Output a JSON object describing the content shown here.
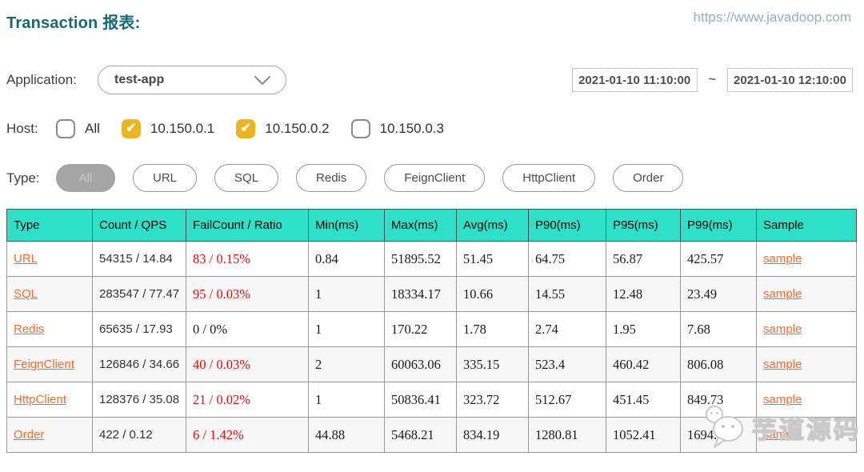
{
  "header": {
    "title": "Transaction 报表:",
    "site_url": "https://www.javadoop.com"
  },
  "filters": {
    "application": {
      "label": "Application:",
      "selected": "test-app"
    },
    "date_range": {
      "start": "2021-01-10 11:10:00",
      "separator": "~",
      "end": "2021-01-10 12:10:00"
    },
    "host": {
      "label": "Host:",
      "options": [
        {
          "label": "All",
          "checked": false
        },
        {
          "label": "10.150.0.1",
          "checked": true
        },
        {
          "label": "10.150.0.2",
          "checked": true
        },
        {
          "label": "10.150.0.3",
          "checked": false
        }
      ]
    },
    "type": {
      "label": "Type:",
      "options": [
        {
          "label": "All",
          "selected": true
        },
        {
          "label": "URL",
          "selected": false
        },
        {
          "label": "SQL",
          "selected": false
        },
        {
          "label": "Redis",
          "selected": false
        },
        {
          "label": "FeignClient",
          "selected": false
        },
        {
          "label": "HttpClient",
          "selected": false
        },
        {
          "label": "Order",
          "selected": false
        }
      ]
    }
  },
  "table": {
    "columns": [
      "Type",
      "Count / QPS",
      "FailCount / Ratio",
      "Min(ms)",
      "Max(ms)",
      "Avg(ms)",
      "P90(ms)",
      "P95(ms)",
      "P99(ms)",
      "Sample"
    ],
    "rows": [
      {
        "type": "URL",
        "count_qps": "54315 / 14.84",
        "fail": "83 / 0.15%",
        "fail_red": true,
        "min": "0.84",
        "max": "51895.52",
        "avg": "51.45",
        "p90": "64.75",
        "p95": "56.87",
        "p99": "425.57",
        "sample": "sample"
      },
      {
        "type": "SQL",
        "count_qps": "283547 / 77.47",
        "fail": "95 / 0.03%",
        "fail_red": true,
        "min": "1",
        "max": "18334.17",
        "avg": "10.66",
        "p90": "14.55",
        "p95": "12.48",
        "p99": "23.49",
        "sample": "sample"
      },
      {
        "type": "Redis",
        "count_qps": "65635 / 17.93",
        "fail": "0 / 0%",
        "fail_red": false,
        "min": "1",
        "max": "170.22",
        "avg": "1.78",
        "p90": "2.74",
        "p95": "1.95",
        "p99": "7.68",
        "sample": "sample"
      },
      {
        "type": "FeignClient",
        "count_qps": "126846 / 34.66",
        "fail": "40 / 0.03%",
        "fail_red": true,
        "min": "2",
        "max": "60063.06",
        "avg": "335.15",
        "p90": "523.4",
        "p95": "460.42",
        "p99": "806.08",
        "sample": "sample"
      },
      {
        "type": "HttpClient",
        "count_qps": "128376 / 35.08",
        "fail": "21 / 0.02%",
        "fail_red": true,
        "min": "1",
        "max": "50836.41",
        "avg": "323.72",
        "p90": "512.67",
        "p95": "451.45",
        "p99": "849.73",
        "sample": "sample"
      },
      {
        "type": "Order",
        "count_qps": "422 / 0.12",
        "fail": "6 / 1.42%",
        "fail_red": true,
        "min": "44.88",
        "max": "5468.21",
        "avg": "834.19",
        "p90": "1280.81",
        "p95": "1052.41",
        "p99": "1694.15",
        "sample": "sample"
      }
    ]
  },
  "watermark": {
    "text": "芋道源码",
    "icon": "wechat-icon"
  },
  "colors": {
    "header_teal": "#2de1c9",
    "title_teal": "#166a70",
    "checkbox_checked": "#eeb420",
    "link_orange": "#fb6c2c",
    "fail_red": "#e90b0b"
  }
}
